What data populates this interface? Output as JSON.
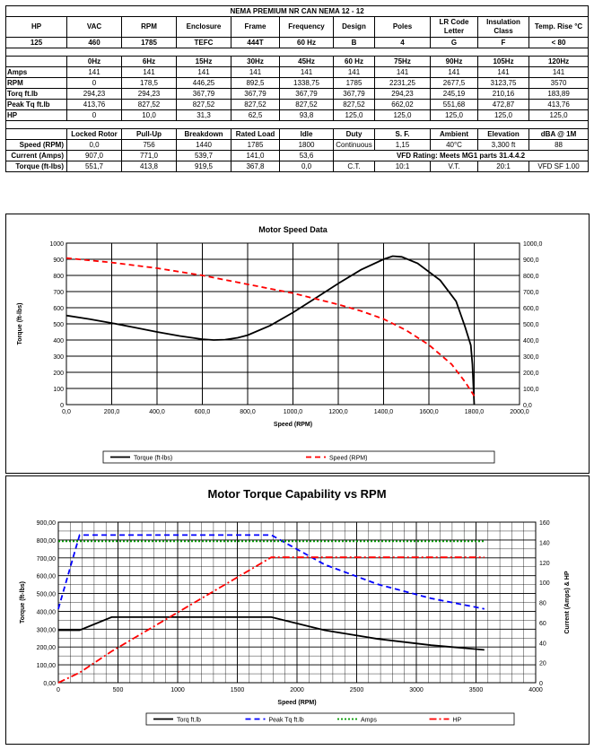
{
  "title": "NEMA PREMIUM NR CAN NEMA 12 - 12",
  "nameplate": {
    "headers": [
      "HP",
      "VAC",
      "RPM",
      "Enclosure",
      "Frame",
      "Frequency",
      "Design",
      "Poles",
      "LR Code Letter",
      "Insulation Class",
      "Temp. Rise °C"
    ],
    "values": [
      "125",
      "460",
      "1785",
      "TEFC",
      "444T",
      "60 Hz",
      "B",
      "4",
      "G",
      "F",
      "< 80"
    ]
  },
  "perf": {
    "headers": [
      "0Hz",
      "6Hz",
      "15Hz",
      "30Hz",
      "45Hz",
      "60 Hz",
      "75Hz",
      "90Hz",
      "105Hz",
      "120Hz"
    ],
    "rows": [
      {
        "label": "Amps",
        "values": [
          "141",
          "141",
          "141",
          "141",
          "141",
          "141",
          "141",
          "141",
          "141",
          "141"
        ]
      },
      {
        "label": "RPM",
        "values": [
          "0",
          "178,5",
          "446,25",
          "892,5",
          "1338,75",
          "1785",
          "2231,25",
          "2677,5",
          "3123,75",
          "3570"
        ]
      },
      {
        "label": "Torq ft.lb",
        "values": [
          "294,23",
          "294,23",
          "367,79",
          "367,79",
          "367,79",
          "367,79",
          "294,23",
          "245,19",
          "210,16",
          "183,89"
        ]
      },
      {
        "label": "Peak Tq ft.lb",
        "values": [
          "413,76",
          "827,52",
          "827,52",
          "827,52",
          "827,52",
          "827,52",
          "662,02",
          "551,68",
          "472,87",
          "413,76"
        ]
      },
      {
        "label": "HP",
        "values": [
          "0",
          "10,0",
          "31,3",
          "62,5",
          "93,8",
          "125,0",
          "125,0",
          "125,0",
          "125,0",
          "125,0"
        ]
      }
    ]
  },
  "points": {
    "headers": [
      "Locked Rotor",
      "Pull-Up",
      "Breakdown",
      "Rated Load",
      "Idle"
    ],
    "rows": [
      {
        "label": "Speed (RPM)",
        "values": [
          "0,0",
          "756",
          "1440",
          "1785",
          "1800"
        ]
      },
      {
        "label": "Current (Amps)",
        "values": [
          "907,0",
          "771,0",
          "539,7",
          "141,0",
          "53,6"
        ]
      },
      {
        "label": "Torque (ft-lbs)",
        "values": [
          "551,7",
          "413,8",
          "919,5",
          "367,8",
          "0,0"
        ]
      }
    ],
    "extra_headers": [
      "Duty",
      "S. F.",
      "Ambient",
      "Elevation",
      "dBA @ 1M"
    ],
    "extra_row1": [
      "Continuous",
      "1,15",
      "40°C",
      "3,300 ft",
      "88"
    ],
    "vfd_rating": "VFD Rating: Meets MG1 parts 31.4.4.2",
    "extra_row3": [
      "C.T.",
      "10:1",
      "V.T.",
      "20:1",
      "VFD SF 1.00"
    ]
  },
  "chart_data": [
    {
      "type": "line",
      "title": "Motor Speed Data",
      "xlabel": "Speed (RPM)",
      "ylabel": "Torque (ft-lbs)",
      "xlim": [
        0,
        2000
      ],
      "ylim": [
        0,
        1000
      ],
      "y2lim": [
        0,
        1000
      ],
      "x_ticks": [
        "0,0",
        "200,0",
        "400,0",
        "600,0",
        "800,0",
        "1000,0",
        "1200,0",
        "1400,0",
        "1600,0",
        "1800,0",
        "2000,0"
      ],
      "y_ticks": [
        "0",
        "100",
        "200",
        "300",
        "400",
        "500",
        "600",
        "700",
        "800",
        "900",
        "1000"
      ],
      "y2_ticks": [
        "0,0",
        "100,0",
        "200,0",
        "300,0",
        "400,0",
        "500,0",
        "600,0",
        "700,0",
        "800,0",
        "900,0",
        "1000,0"
      ],
      "grid": true,
      "legend_position": "bottom",
      "series": [
        {
          "name": "Torque (ft-lbs)",
          "color": "#000000",
          "dash": "solid",
          "x": [
            0,
            100,
            200,
            300,
            400,
            500,
            600,
            650,
            700,
            756,
            800,
            900,
            1000,
            1100,
            1200,
            1300,
            1400,
            1440,
            1480,
            1550,
            1650,
            1720,
            1760,
            1785,
            1792,
            1800
          ],
          "y": [
            551.7,
            530,
            505,
            478,
            450,
            425,
            405,
            400,
            402,
            413.8,
            430,
            490,
            570,
            660,
            750,
            835,
            900,
            919.5,
            915,
            875,
            770,
            640,
            480,
            367.8,
            250,
            0
          ]
        },
        {
          "name": "Speed (RPM)",
          "color": "#ff0000",
          "dash": "dash",
          "x": [
            0,
            200,
            400,
            600,
            800,
            1000,
            1200,
            1300,
            1400,
            1500,
            1600,
            1700,
            1760,
            1800
          ],
          "y": [
            907,
            880,
            845,
            800,
            745,
            690,
            620,
            580,
            530,
            460,
            370,
            250,
            140,
            53.6
          ]
        }
      ]
    },
    {
      "type": "line",
      "title": "Motor Torque Capability vs RPM",
      "xlabel": "Speed (RPM)",
      "ylabel": "Torque (ft-lbs)",
      "y2label": "Current (Amps) & HP",
      "xlim": [
        0,
        4000
      ],
      "ylim": [
        0,
        900
      ],
      "y2lim": [
        0,
        160
      ],
      "x_ticks": [
        "0",
        "500",
        "1000",
        "1500",
        "2000",
        "2500",
        "3000",
        "3500",
        "4000"
      ],
      "y_ticks": [
        "0,00",
        "100,00",
        "200,00",
        "300,00",
        "400,00",
        "500,00",
        "600,00",
        "700,00",
        "800,00",
        "900,00"
      ],
      "y2_ticks": [
        "0",
        "20",
        "40",
        "60",
        "80",
        "100",
        "120",
        "140",
        "160"
      ],
      "grid": true,
      "legend_position": "bottom",
      "series": [
        {
          "name": "Torq ft.lb",
          "color": "#000000",
          "dash": "solid",
          "axis": "left",
          "x": [
            0,
            178.5,
            446.25,
            892.5,
            1338.75,
            1785,
            2231.25,
            2677.5,
            3123.75,
            3570
          ],
          "y": [
            294.23,
            294.23,
            367.79,
            367.79,
            367.79,
            367.79,
            294.23,
            245.19,
            210.16,
            183.89
          ]
        },
        {
          "name": "Peak Tq ft.lb",
          "color": "#0000ff",
          "dash": "dash",
          "axis": "left",
          "x": [
            0,
            178.5,
            446.25,
            892.5,
            1338.75,
            1785,
            2231.25,
            2677.5,
            3123.75,
            3570
          ],
          "y": [
            413.76,
            827.52,
            827.52,
            827.52,
            827.52,
            827.52,
            662.02,
            551.68,
            472.87,
            413.76
          ]
        },
        {
          "name": "Amps",
          "color": "#009900",
          "dash": "dot",
          "axis": "right",
          "x": [
            0,
            178.5,
            446.25,
            892.5,
            1338.75,
            1785,
            2231.25,
            2677.5,
            3123.75,
            3570
          ],
          "y": [
            141,
            141,
            141,
            141,
            141,
            141,
            141,
            141,
            141,
            141
          ]
        },
        {
          "name": "HP",
          "color": "#ff0000",
          "dash": "dashdot",
          "axis": "right",
          "x": [
            0,
            178.5,
            446.25,
            892.5,
            1338.75,
            1785,
            2231.25,
            2677.5,
            3123.75,
            3570
          ],
          "y": [
            0,
            10,
            31.3,
            62.5,
            93.8,
            125,
            125,
            125,
            125,
            125
          ]
        }
      ]
    }
  ]
}
